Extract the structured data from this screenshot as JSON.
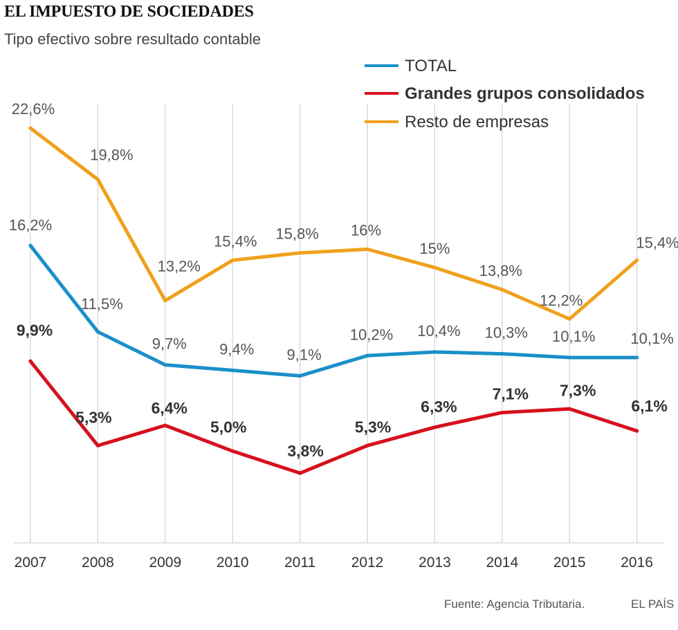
{
  "header": {
    "title": "EL IMPUESTO DE SOCIEDADES",
    "subtitle": "Tipo efectivo sobre resultado contable"
  },
  "footer": {
    "source": "Fuente: Agencia Tributaria.",
    "brand": "EL PAÍS"
  },
  "chart_data": {
    "type": "line",
    "title": "EL IMPUESTO DE SOCIEDADES",
    "subtitle": "Tipo efectivo sobre resultado contable",
    "xlabel": "",
    "ylabel": "",
    "categories": [
      "2007",
      "2008",
      "2009",
      "2010",
      "2011",
      "2012",
      "2013",
      "2014",
      "2015",
      "2016"
    ],
    "ylim": [
      0,
      26
    ],
    "grid": "vertical",
    "legend_position": "top-right",
    "series": [
      {
        "name": "TOTAL",
        "key": "total",
        "color": "#1a8fc9",
        "bold_labels": false,
        "values": [
          16.2,
          11.5,
          9.7,
          9.4,
          9.1,
          10.2,
          10.4,
          10.3,
          10.1,
          10.1
        ],
        "labels": [
          "16,2%",
          "11,5%",
          "9,7%",
          "9,4%",
          "9,1%",
          "10,2%",
          "10,4%",
          "10,3%",
          "10,1%",
          "10,1%"
        ]
      },
      {
        "name": "Grandes grupos consolidados",
        "key": "grandes",
        "color": "#d6101d",
        "bold_labels": true,
        "values": [
          9.9,
          5.3,
          6.4,
          5.0,
          3.8,
          5.3,
          6.3,
          7.1,
          7.3,
          6.1
        ],
        "labels": [
          "9,9%",
          "5,3%",
          "6,4%",
          "5,0%",
          "3,8%",
          "5,3%",
          "6,3%",
          "7,1%",
          "7,3%",
          "6,1%"
        ]
      },
      {
        "name": "Resto de empresas",
        "key": "resto",
        "color": "#f0a01c",
        "bold_labels": false,
        "values": [
          22.6,
          19.8,
          13.2,
          15.4,
          15.8,
          16.0,
          15.0,
          13.8,
          12.2,
          15.4
        ],
        "labels": [
          "22,6%",
          "19,8%",
          "13,2%",
          "15,4%",
          "15,8%",
          "16%",
          "15%",
          "13,8%",
          "12,2%",
          "15,4%"
        ]
      }
    ]
  }
}
